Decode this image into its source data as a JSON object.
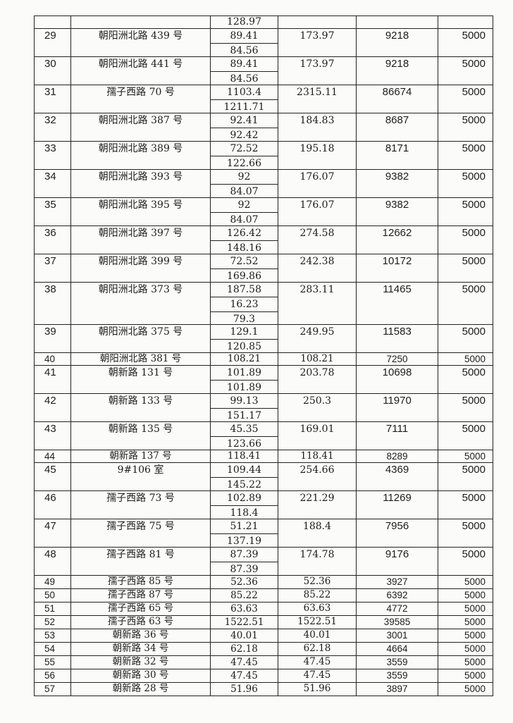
{
  "table": {
    "top_partial_row": {
      "areas": [
        "128.97"
      ]
    },
    "rows": [
      {
        "no": "29",
        "address": "朝阳洲北路 439 号",
        "areas": [
          "89.41",
          "84.56"
        ],
        "total": "173.97",
        "price": "9218",
        "cap": "5000"
      },
      {
        "no": "30",
        "address": "朝阳洲北路 441 号",
        "areas": [
          "89.41",
          "84.56"
        ],
        "total": "173.97",
        "price": "9218",
        "cap": "5000"
      },
      {
        "no": "31",
        "address": "孺子西路 70 号",
        "areas": [
          "1103.4",
          "1211.71"
        ],
        "total": "2315.11",
        "price": "86674",
        "cap": "5000"
      },
      {
        "no": "32",
        "address": "朝阳洲北路 387 号",
        "areas": [
          "92.41",
          "92.42"
        ],
        "total": "184.83",
        "price": "8687",
        "cap": "5000"
      },
      {
        "no": "33",
        "address": "朝阳洲北路 389 号",
        "areas": [
          "72.52",
          "122.66"
        ],
        "total": "195.18",
        "price": "8171",
        "cap": "5000"
      },
      {
        "no": "34",
        "address": "朝阳洲北路 393 号",
        "areas": [
          "92",
          "84.07"
        ],
        "total": "176.07",
        "price": "9382",
        "cap": "5000"
      },
      {
        "no": "35",
        "address": "朝阳洲北路 395 号",
        "areas": [
          "92",
          "84.07"
        ],
        "total": "176.07",
        "price": "9382",
        "cap": "5000"
      },
      {
        "no": "36",
        "address": "朝阳洲北路 397 号",
        "areas": [
          "126.42",
          "148.16"
        ],
        "total": "274.58",
        "price": "12662",
        "cap": "5000"
      },
      {
        "no": "37",
        "address": "朝阳洲北路 399 号",
        "areas": [
          "72.52",
          "169.86"
        ],
        "total": "242.38",
        "price": "10172",
        "cap": "5000"
      },
      {
        "no": "38",
        "address": "朝阳洲北路 373 号",
        "areas": [
          "187.58",
          "16.23",
          "79.3"
        ],
        "total": "283.11",
        "price": "11465",
        "cap": "5000"
      },
      {
        "no": "39",
        "address": "朝阳洲北路 375 号",
        "areas": [
          "129.1",
          "120.85"
        ],
        "total": "249.95",
        "price": "11583",
        "cap": "5000"
      },
      {
        "no": "40",
        "address": "朝阳洲北路 381 号",
        "areas": [
          "108.21"
        ],
        "total": "108.21",
        "price": "7250",
        "cap": "5000"
      },
      {
        "no": "41",
        "address": "朝新路 131 号",
        "areas": [
          "101.89",
          "101.89"
        ],
        "total": "203.78",
        "price": "10698",
        "cap": "5000"
      },
      {
        "no": "42",
        "address": "朝新路 133 号",
        "areas": [
          "99.13",
          "151.17"
        ],
        "total": "250.3",
        "price": "11970",
        "cap": "5000"
      },
      {
        "no": "43",
        "address": "朝新路 135 号",
        "areas": [
          "45.35",
          "123.66"
        ],
        "total": "169.01",
        "price": "7111",
        "cap": "5000"
      },
      {
        "no": "44",
        "address": "朝新路 137 号",
        "areas": [
          "118.41"
        ],
        "total": "118.41",
        "price": "8289",
        "cap": "5000"
      },
      {
        "no": "45",
        "address": "9#106 室",
        "areas": [
          "109.44",
          "145.22"
        ],
        "total": "254.66",
        "price": "4369",
        "cap": "5000"
      },
      {
        "no": "46",
        "address": "孺子西路 73 号",
        "areas": [
          "102.89",
          "118.4"
        ],
        "total": "221.29",
        "price": "11269",
        "cap": "5000"
      },
      {
        "no": "47",
        "address": "孺子西路 75 号",
        "areas": [
          "51.21",
          "137.19"
        ],
        "total": "188.4",
        "price": "7956",
        "cap": "5000"
      },
      {
        "no": "48",
        "address": "孺子西路 81 号",
        "areas": [
          "87.39",
          "87.39"
        ],
        "total": "174.78",
        "price": "9176",
        "cap": "5000"
      },
      {
        "no": "49",
        "address": "孺子西路 85 号",
        "areas": [
          "52.36"
        ],
        "total": "52.36",
        "price": "3927",
        "cap": "5000"
      },
      {
        "no": "50",
        "address": "孺子西路 87 号",
        "areas": [
          "85.22"
        ],
        "total": "85.22",
        "price": "6392",
        "cap": "5000"
      },
      {
        "no": "51",
        "address": "孺子西路 65 号",
        "areas": [
          "63.63"
        ],
        "total": "63.63",
        "price": "4772",
        "cap": "5000"
      },
      {
        "no": "52",
        "address": "孺子西路 63 号",
        "areas": [
          "1522.51"
        ],
        "total": "1522.51",
        "price": "39585",
        "cap": "5000"
      },
      {
        "no": "53",
        "address": "朝新路 36 号",
        "areas": [
          "40.01"
        ],
        "total": "40.01",
        "price": "3001",
        "cap": "5000"
      },
      {
        "no": "54",
        "address": "朝新路 34 号",
        "areas": [
          "62.18"
        ],
        "total": "62.18",
        "price": "4664",
        "cap": "5000"
      },
      {
        "no": "55",
        "address": "朝新路 32 号",
        "areas": [
          "47.45"
        ],
        "total": "47.45",
        "price": "3559",
        "cap": "5000"
      },
      {
        "no": "56",
        "address": "朝新路 30 号",
        "areas": [
          "47.45"
        ],
        "total": "47.45",
        "price": "3559",
        "cap": "5000"
      },
      {
        "no": "57",
        "address": "朝新路 28 号",
        "areas": [
          "51.96"
        ],
        "total": "51.96",
        "price": "3897",
        "cap": "5000"
      }
    ]
  }
}
